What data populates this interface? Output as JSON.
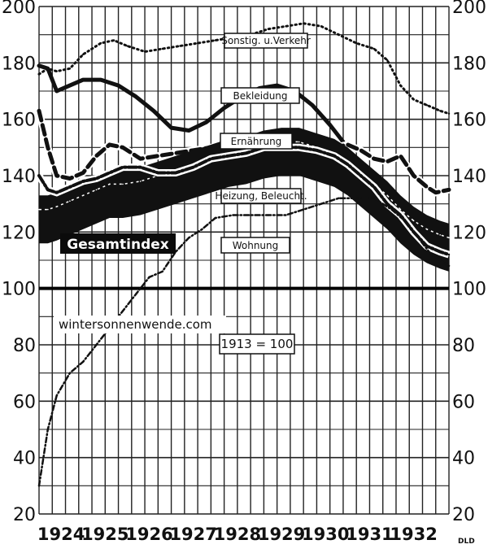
{
  "chart_data": {
    "type": "line",
    "ylim": [
      20,
      200
    ],
    "yticks": [
      "20",
      "40",
      "60",
      "80",
      "100",
      "120",
      "140",
      "160",
      "180",
      "200"
    ],
    "xlim": [
      1923.6,
      1932.9
    ],
    "years": [
      "1924",
      "1925",
      "1926",
      "1927",
      "1928",
      "1929",
      "1930",
      "1931",
      "1932"
    ],
    "baseline": 100,
    "base_note": "1913 = 100",
    "watermark": "wintersonnenwende.com",
    "credit": "DLD",
    "series": [
      {
        "name": "Sonstig. u.Verkehr",
        "style": "dotted",
        "color": "#111111",
        "x": [
          1923.6,
          1923.8,
          1924.0,
          1924.3,
          1924.6,
          1925.0,
          1925.3,
          1925.6,
          1926.0,
          1926.4,
          1926.8,
          1927.2,
          1927.6,
          1928.0,
          1928.4,
          1928.8,
          1929.2,
          1929.6,
          1930.0,
          1930.4,
          1930.8,
          1931.2,
          1931.5,
          1931.8,
          1932.1,
          1932.4,
          1932.7,
          1932.9
        ],
        "y": [
          176,
          178,
          177,
          178,
          183,
          187,
          188,
          186,
          184,
          185,
          186,
          187,
          188,
          189,
          190,
          192,
          193,
          194,
          193,
          190,
          187,
          185,
          181,
          172,
          167,
          165,
          163,
          162
        ]
      },
      {
        "name": "Bekleidung",
        "style": "solid",
        "color": "#111111",
        "x": [
          1923.6,
          1923.8,
          1924.0,
          1924.3,
          1924.6,
          1925.0,
          1925.4,
          1925.8,
          1926.2,
          1926.6,
          1927.0,
          1927.4,
          1927.8,
          1928.2,
          1928.6,
          1929.0,
          1929.4,
          1929.8,
          1930.2,
          1930.5
        ],
        "y": [
          179,
          178,
          170,
          172,
          174,
          174,
          172,
          168,
          163,
          157,
          156,
          159,
          164,
          168,
          171,
          172,
          170,
          165,
          158,
          152
        ]
      },
      {
        "name": "Ernährung",
        "style": "dashed",
        "color": "#111111",
        "x": [
          1923.6,
          1923.8,
          1924.0,
          1924.3,
          1924.6,
          1924.9,
          1925.2,
          1925.5,
          1925.9,
          1926.3,
          1926.7,
          1927.1,
          1927.5,
          1927.9,
          1928.3,
          1928.7,
          1929.1,
          1929.5,
          1929.9,
          1930.3,
          1930.6,
          1930.9,
          1931.2,
          1931.5,
          1931.8,
          1932.1,
          1932.4,
          1932.6,
          1932.9
        ],
        "y": [
          163,
          150,
          140,
          139,
          141,
          147,
          151,
          150,
          146,
          147,
          148,
          149,
          150,
          151,
          150,
          152,
          154,
          153,
          151,
          150,
          151,
          149,
          146,
          145,
          147,
          140,
          136,
          134,
          135
        ]
      },
      {
        "name": "Gesamtindex",
        "style": "band",
        "color": "#111111",
        "x": [
          1923.6,
          1923.8,
          1924.0,
          1924.3,
          1924.6,
          1924.9,
          1925.2,
          1925.5,
          1925.9,
          1926.3,
          1926.7,
          1927.1,
          1927.5,
          1927.9,
          1928.3,
          1928.7,
          1929.1,
          1929.5,
          1929.9,
          1930.3,
          1930.6,
          1930.9,
          1931.2,
          1931.5,
          1931.8,
          1932.1,
          1932.4,
          1932.7,
          1932.9
        ],
        "y": [
          128,
          128,
          129,
          131,
          133,
          135,
          137,
          137,
          138,
          140,
          142,
          144,
          146,
          148,
          149,
          151,
          152,
          152,
          150,
          148,
          145,
          141,
          137,
          133,
          128,
          124,
          121,
          119,
          118
        ]
      },
      {
        "name": "Heizung, Beleucht.",
        "style": "dashdot",
        "color": "#111111",
        "x": [
          1923.6,
          1923.8,
          1924.0,
          1924.3,
          1924.6,
          1924.9,
          1925.2,
          1925.5,
          1925.9,
          1926.3,
          1926.7,
          1927.1,
          1927.5,
          1927.9,
          1928.3,
          1928.7,
          1929.1,
          1929.5,
          1929.9,
          1930.3,
          1930.6,
          1930.9,
          1931.2,
          1931.5,
          1931.8,
          1932.1,
          1932.4,
          1932.7,
          1932.9
        ],
        "y": [
          140,
          135,
          134,
          136,
          138,
          139,
          141,
          143,
          143,
          141,
          141,
          143,
          146,
          147,
          148,
          150,
          150,
          150,
          149,
          147,
          144,
          140,
          136,
          130,
          126,
          120,
          115,
          113,
          112
        ]
      },
      {
        "name": "Wohnung",
        "style": "dotdash",
        "color": "#111111",
        "x": [
          1923.6,
          1923.8,
          1924.0,
          1924.3,
          1924.6,
          1924.9,
          1925.2,
          1925.5,
          1925.8,
          1926.1,
          1926.4,
          1926.7,
          1927.0,
          1927.3,
          1927.6,
          1928.0,
          1928.4,
          1928.8,
          1929.2,
          1929.6,
          1930.0,
          1930.4,
          1930.8,
          1931.2,
          1931.6,
          1931.9,
          1932.2,
          1932.5,
          1932.9
        ],
        "y": [
          30,
          50,
          62,
          70,
          74,
          80,
          86,
          92,
          98,
          104,
          106,
          113,
          118,
          121,
          125,
          126,
          126,
          126,
          126,
          128,
          130,
          132,
          132,
          132,
          128,
          124,
          118,
          112,
          108
        ]
      }
    ],
    "labels": {
      "sonstig": "Sonstig. u.Verkehr",
      "bekleidung": "Bekleidung",
      "ernaehrung": "Ernährung",
      "heizung": "Heizung, Beleucht.",
      "wohnung": "Wohnung",
      "gesamtindex": "Gesamtindex"
    }
  }
}
